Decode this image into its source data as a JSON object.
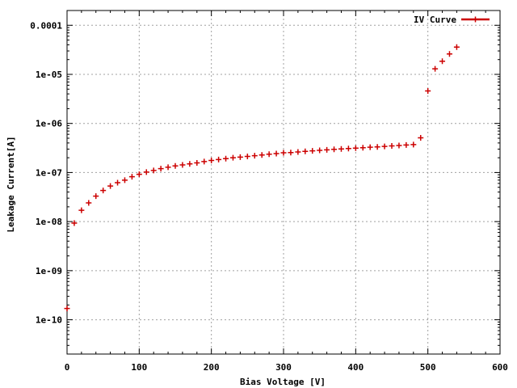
{
  "chart_data": {
    "type": "scatter",
    "xlabel": "Bias Voltage [V]",
    "ylabel": "Leakage Current[A]",
    "xlim": [
      0,
      600
    ],
    "ylim": [
      2e-11,
      0.0002
    ],
    "y_scale": "log",
    "grid": true,
    "legend_position": "top-right",
    "x_ticks": [
      {
        "value": 0,
        "label": "0"
      },
      {
        "value": 100,
        "label": "100"
      },
      {
        "value": 200,
        "label": "200"
      },
      {
        "value": 300,
        "label": "300"
      },
      {
        "value": 400,
        "label": "400"
      },
      {
        "value": 500,
        "label": "500"
      },
      {
        "value": 600,
        "label": "600"
      }
    ],
    "y_ticks": [
      {
        "value": 1e-10,
        "label": "1e-10"
      },
      {
        "value": 1e-09,
        "label": "1e-09"
      },
      {
        "value": 1e-08,
        "label": "1e-08"
      },
      {
        "value": 1e-07,
        "label": "1e-07"
      },
      {
        "value": 1e-06,
        "label": "1e-06"
      },
      {
        "value": 1e-05,
        "label": "1e-05"
      },
      {
        "value": 0.0001,
        "label": "0.0001"
      }
    ],
    "series": [
      {
        "name": "IV Curve",
        "color": "#cc0000",
        "marker": "plus",
        "x": [
          0,
          10,
          20,
          30,
          40,
          50,
          60,
          70,
          80,
          90,
          100,
          110,
          120,
          130,
          140,
          150,
          160,
          170,
          180,
          190,
          200,
          210,
          220,
          230,
          240,
          250,
          260,
          270,
          280,
          290,
          300,
          310,
          320,
          330,
          340,
          350,
          360,
          370,
          380,
          390,
          400,
          410,
          420,
          430,
          440,
          450,
          460,
          470,
          480,
          490,
          500,
          510,
          520,
          530,
          540
        ],
        "y": [
          1.7e-10,
          9.3e-09,
          1.7e-08,
          2.4e-08,
          3.3e-08,
          4.3e-08,
          5.3e-08,
          6.2e-08,
          7e-08,
          8.2e-08,
          9.2e-08,
          1.02e-07,
          1.1e-07,
          1.2e-07,
          1.28e-07,
          1.36e-07,
          1.43e-07,
          1.5e-07,
          1.57e-07,
          1.67e-07,
          1.76e-07,
          1.84e-07,
          1.92e-07,
          2e-07,
          2.06e-07,
          2.13e-07,
          2.2e-07,
          2.28e-07,
          2.36e-07,
          2.43e-07,
          2.52e-07,
          2.55e-07,
          2.62e-07,
          2.7e-07,
          2.76e-07,
          2.83e-07,
          2.9e-07,
          2.96e-07,
          3.02e-07,
          3.08e-07,
          3.14e-07,
          3.2e-07,
          3.27e-07,
          3.33e-07,
          3.4e-07,
          3.48e-07,
          3.55e-07,
          3.63e-07,
          3.7e-07,
          5.1e-07,
          4.6e-06,
          1.3e-05,
          1.85e-05,
          2.6e-05,
          3.6e-05
        ]
      }
    ]
  }
}
